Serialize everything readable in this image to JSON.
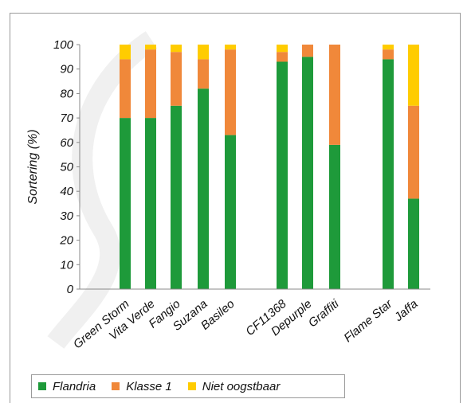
{
  "chart_data": {
    "type": "bar",
    "stacked": true,
    "title": "",
    "xlabel": "",
    "ylabel": "Sortering (%)",
    "ylim": [
      0,
      100
    ],
    "yticks": [
      0,
      10,
      20,
      30,
      40,
      50,
      60,
      70,
      80,
      90,
      100
    ],
    "categories": [
      "Green Storm",
      "Vita Verde",
      "Fangio",
      "Suzana",
      "Basileo",
      "CF11368",
      "Depurple",
      "Graffiti",
      "Flame Star",
      "Jaffa"
    ],
    "groups": [
      [
        0,
        1,
        2,
        3,
        4
      ],
      [
        5,
        6,
        7
      ],
      [
        8,
        9
      ]
    ],
    "series": [
      {
        "name": "Flandria",
        "color": "#1e9a3a",
        "values": [
          70,
          70,
          75,
          82,
          63,
          93,
          95,
          59,
          94,
          37
        ]
      },
      {
        "name": "Klasse 1",
        "color": "#f0883a",
        "values": [
          24,
          28,
          22,
          12,
          35,
          4,
          5,
          41,
          4,
          38
        ]
      },
      {
        "name": "Niet oogstbaar",
        "color": "#ffcc00",
        "values": [
          6,
          2,
          3,
          6,
          2,
          3,
          0,
          0,
          2,
          25
        ]
      }
    ],
    "grid": false,
    "legend_position": "bottom"
  }
}
